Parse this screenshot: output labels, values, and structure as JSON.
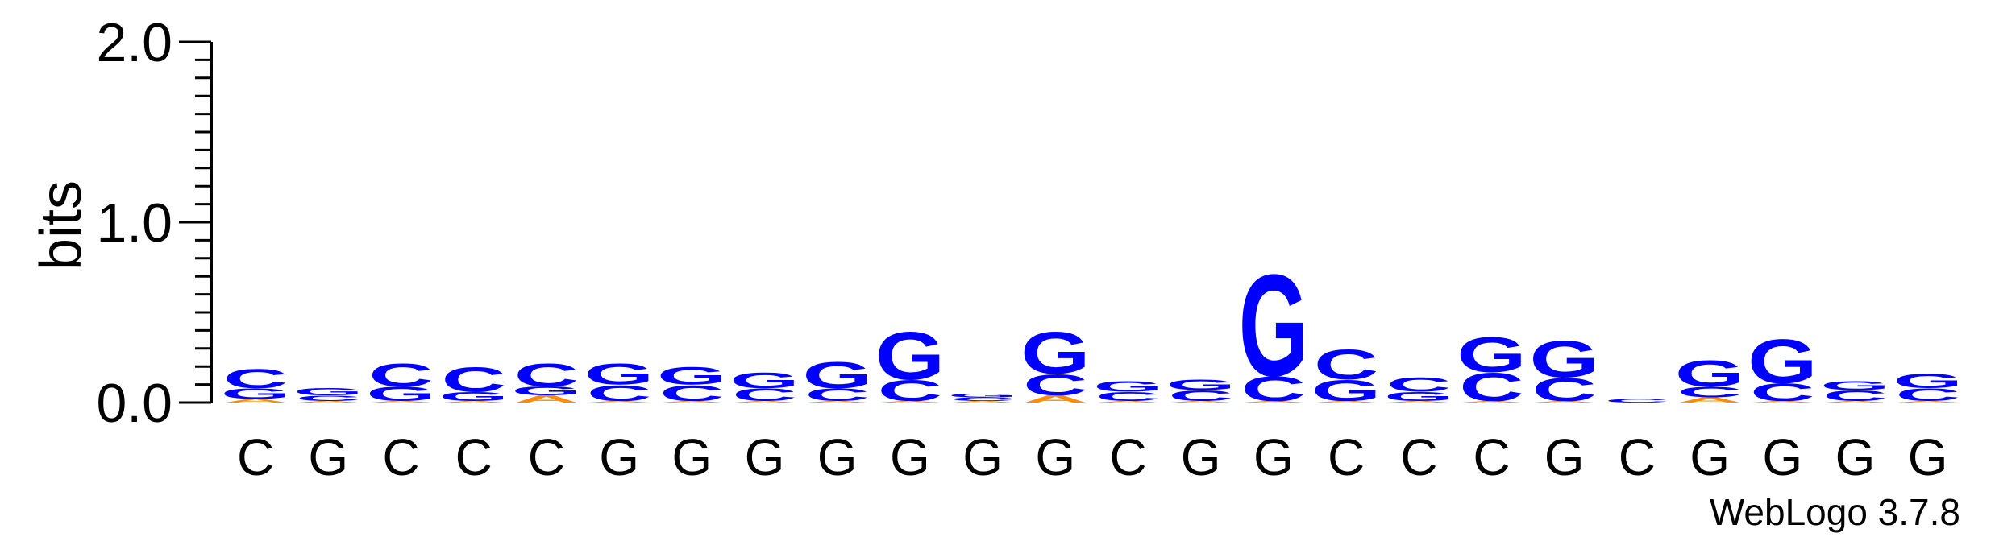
{
  "chart_data": {
    "type": "sequence-logo",
    "ylabel": "bits",
    "ylim": [
      0,
      2.0
    ],
    "yticks": [
      {
        "value": 0.0,
        "label": "0.0"
      },
      {
        "value": 1.0,
        "label": "1.0"
      },
      {
        "value": 2.0,
        "label": "2.0"
      }
    ],
    "yminor_step": 0.1,
    "colors": {
      "G": "#0000ff",
      "C": "#0000ff",
      "A": "#ff8c00",
      "T": "#ff8c00"
    },
    "positions": [
      {
        "label": "C",
        "stack": [
          {
            "letter": "A",
            "bits": 0.02
          },
          {
            "letter": "G",
            "bits": 0.06
          },
          {
            "letter": "C",
            "bits": 0.11
          }
        ]
      },
      {
        "label": "G",
        "stack": [
          {
            "letter": "A",
            "bits": 0.01
          },
          {
            "letter": "C",
            "bits": 0.03
          },
          {
            "letter": "G",
            "bits": 0.04
          }
        ]
      },
      {
        "label": "C",
        "stack": [
          {
            "letter": "A",
            "bits": 0.01
          },
          {
            "letter": "G",
            "bits": 0.08
          },
          {
            "letter": "C",
            "bits": 0.13
          }
        ]
      },
      {
        "label": "C",
        "stack": [
          {
            "letter": "A",
            "bits": 0.01
          },
          {
            "letter": "G",
            "bits": 0.05
          },
          {
            "letter": "C",
            "bits": 0.14
          }
        ]
      },
      {
        "label": "C",
        "stack": [
          {
            "letter": "A",
            "bits": 0.04
          },
          {
            "letter": "G",
            "bits": 0.05
          },
          {
            "letter": "C",
            "bits": 0.13
          }
        ]
      },
      {
        "label": "G",
        "stack": [
          {
            "letter": "A",
            "bits": 0.01
          },
          {
            "letter": "C",
            "bits": 0.09
          },
          {
            "letter": "G",
            "bits": 0.12
          }
        ]
      },
      {
        "label": "G",
        "stack": [
          {
            "letter": "A",
            "bits": 0.01
          },
          {
            "letter": "C",
            "bits": 0.09
          },
          {
            "letter": "G",
            "bits": 0.1
          }
        ]
      },
      {
        "label": "G",
        "stack": [
          {
            "letter": "A",
            "bits": 0.01
          },
          {
            "letter": "C",
            "bits": 0.07
          },
          {
            "letter": "G",
            "bits": 0.09
          }
        ]
      },
      {
        "label": "G",
        "stack": [
          {
            "letter": "A",
            "bits": 0.01
          },
          {
            "letter": "C",
            "bits": 0.07
          },
          {
            "letter": "G",
            "bits": 0.15
          }
        ]
      },
      {
        "label": "G",
        "stack": [
          {
            "letter": "A",
            "bits": 0.01
          },
          {
            "letter": "C",
            "bits": 0.12
          },
          {
            "letter": "G",
            "bits": 0.27
          }
        ]
      },
      {
        "label": "G",
        "stack": [
          {
            "letter": "A",
            "bits": 0.01
          },
          {
            "letter": "C",
            "bits": 0.02
          },
          {
            "letter": "G",
            "bits": 0.02
          }
        ]
      },
      {
        "label": "G",
        "stack": [
          {
            "letter": "A",
            "bits": 0.04
          },
          {
            "letter": "C",
            "bits": 0.12
          },
          {
            "letter": "G",
            "bits": 0.24
          }
        ]
      },
      {
        "label": "C",
        "stack": [
          {
            "letter": "A",
            "bits": 0.01
          },
          {
            "letter": "C",
            "bits": 0.05
          },
          {
            "letter": "G",
            "bits": 0.06
          }
        ]
      },
      {
        "label": "G",
        "stack": [
          {
            "letter": "A",
            "bits": 0.01
          },
          {
            "letter": "C",
            "bits": 0.06
          },
          {
            "letter": "G",
            "bits": 0.06
          }
        ]
      },
      {
        "label": "G",
        "stack": [
          {
            "letter": "A",
            "bits": 0.01
          },
          {
            "letter": "C",
            "bits": 0.14
          },
          {
            "letter": "G",
            "bits": 0.58
          }
        ]
      },
      {
        "label": "C",
        "stack": [
          {
            "letter": "A",
            "bits": 0.01
          },
          {
            "letter": "G",
            "bits": 0.12
          },
          {
            "letter": "C",
            "bits": 0.17
          }
        ]
      },
      {
        "label": "C",
        "stack": [
          {
            "letter": "A",
            "bits": 0.01
          },
          {
            "letter": "G",
            "bits": 0.05
          },
          {
            "letter": "C",
            "bits": 0.08
          }
        ]
      },
      {
        "label": "C",
        "stack": [
          {
            "letter": "A",
            "bits": 0.01
          },
          {
            "letter": "C",
            "bits": 0.16
          },
          {
            "letter": "G",
            "bits": 0.2
          }
        ]
      },
      {
        "label": "G",
        "stack": [
          {
            "letter": "A",
            "bits": 0.01
          },
          {
            "letter": "C",
            "bits": 0.13
          },
          {
            "letter": "G",
            "bits": 0.21
          }
        ]
      },
      {
        "label": "C",
        "stack": [
          {
            "letter": "C",
            "bits": 0.02
          }
        ]
      },
      {
        "label": "G",
        "stack": [
          {
            "letter": "A",
            "bits": 0.03
          },
          {
            "letter": "C",
            "bits": 0.06
          },
          {
            "letter": "G",
            "bits": 0.15
          }
        ]
      },
      {
        "label": "G",
        "stack": [
          {
            "letter": "A",
            "bits": 0.01
          },
          {
            "letter": "C",
            "bits": 0.1
          },
          {
            "letter": "G",
            "bits": 0.25
          }
        ]
      },
      {
        "label": "G",
        "stack": [
          {
            "letter": "A",
            "bits": 0.01
          },
          {
            "letter": "C",
            "bits": 0.06
          },
          {
            "letter": "G",
            "bits": 0.05
          }
        ]
      },
      {
        "label": "G",
        "stack": [
          {
            "letter": "A",
            "bits": 0.01
          },
          {
            "letter": "C",
            "bits": 0.07
          },
          {
            "letter": "G",
            "bits": 0.08
          }
        ]
      }
    ],
    "footer": "WebLogo 3.7.8"
  }
}
